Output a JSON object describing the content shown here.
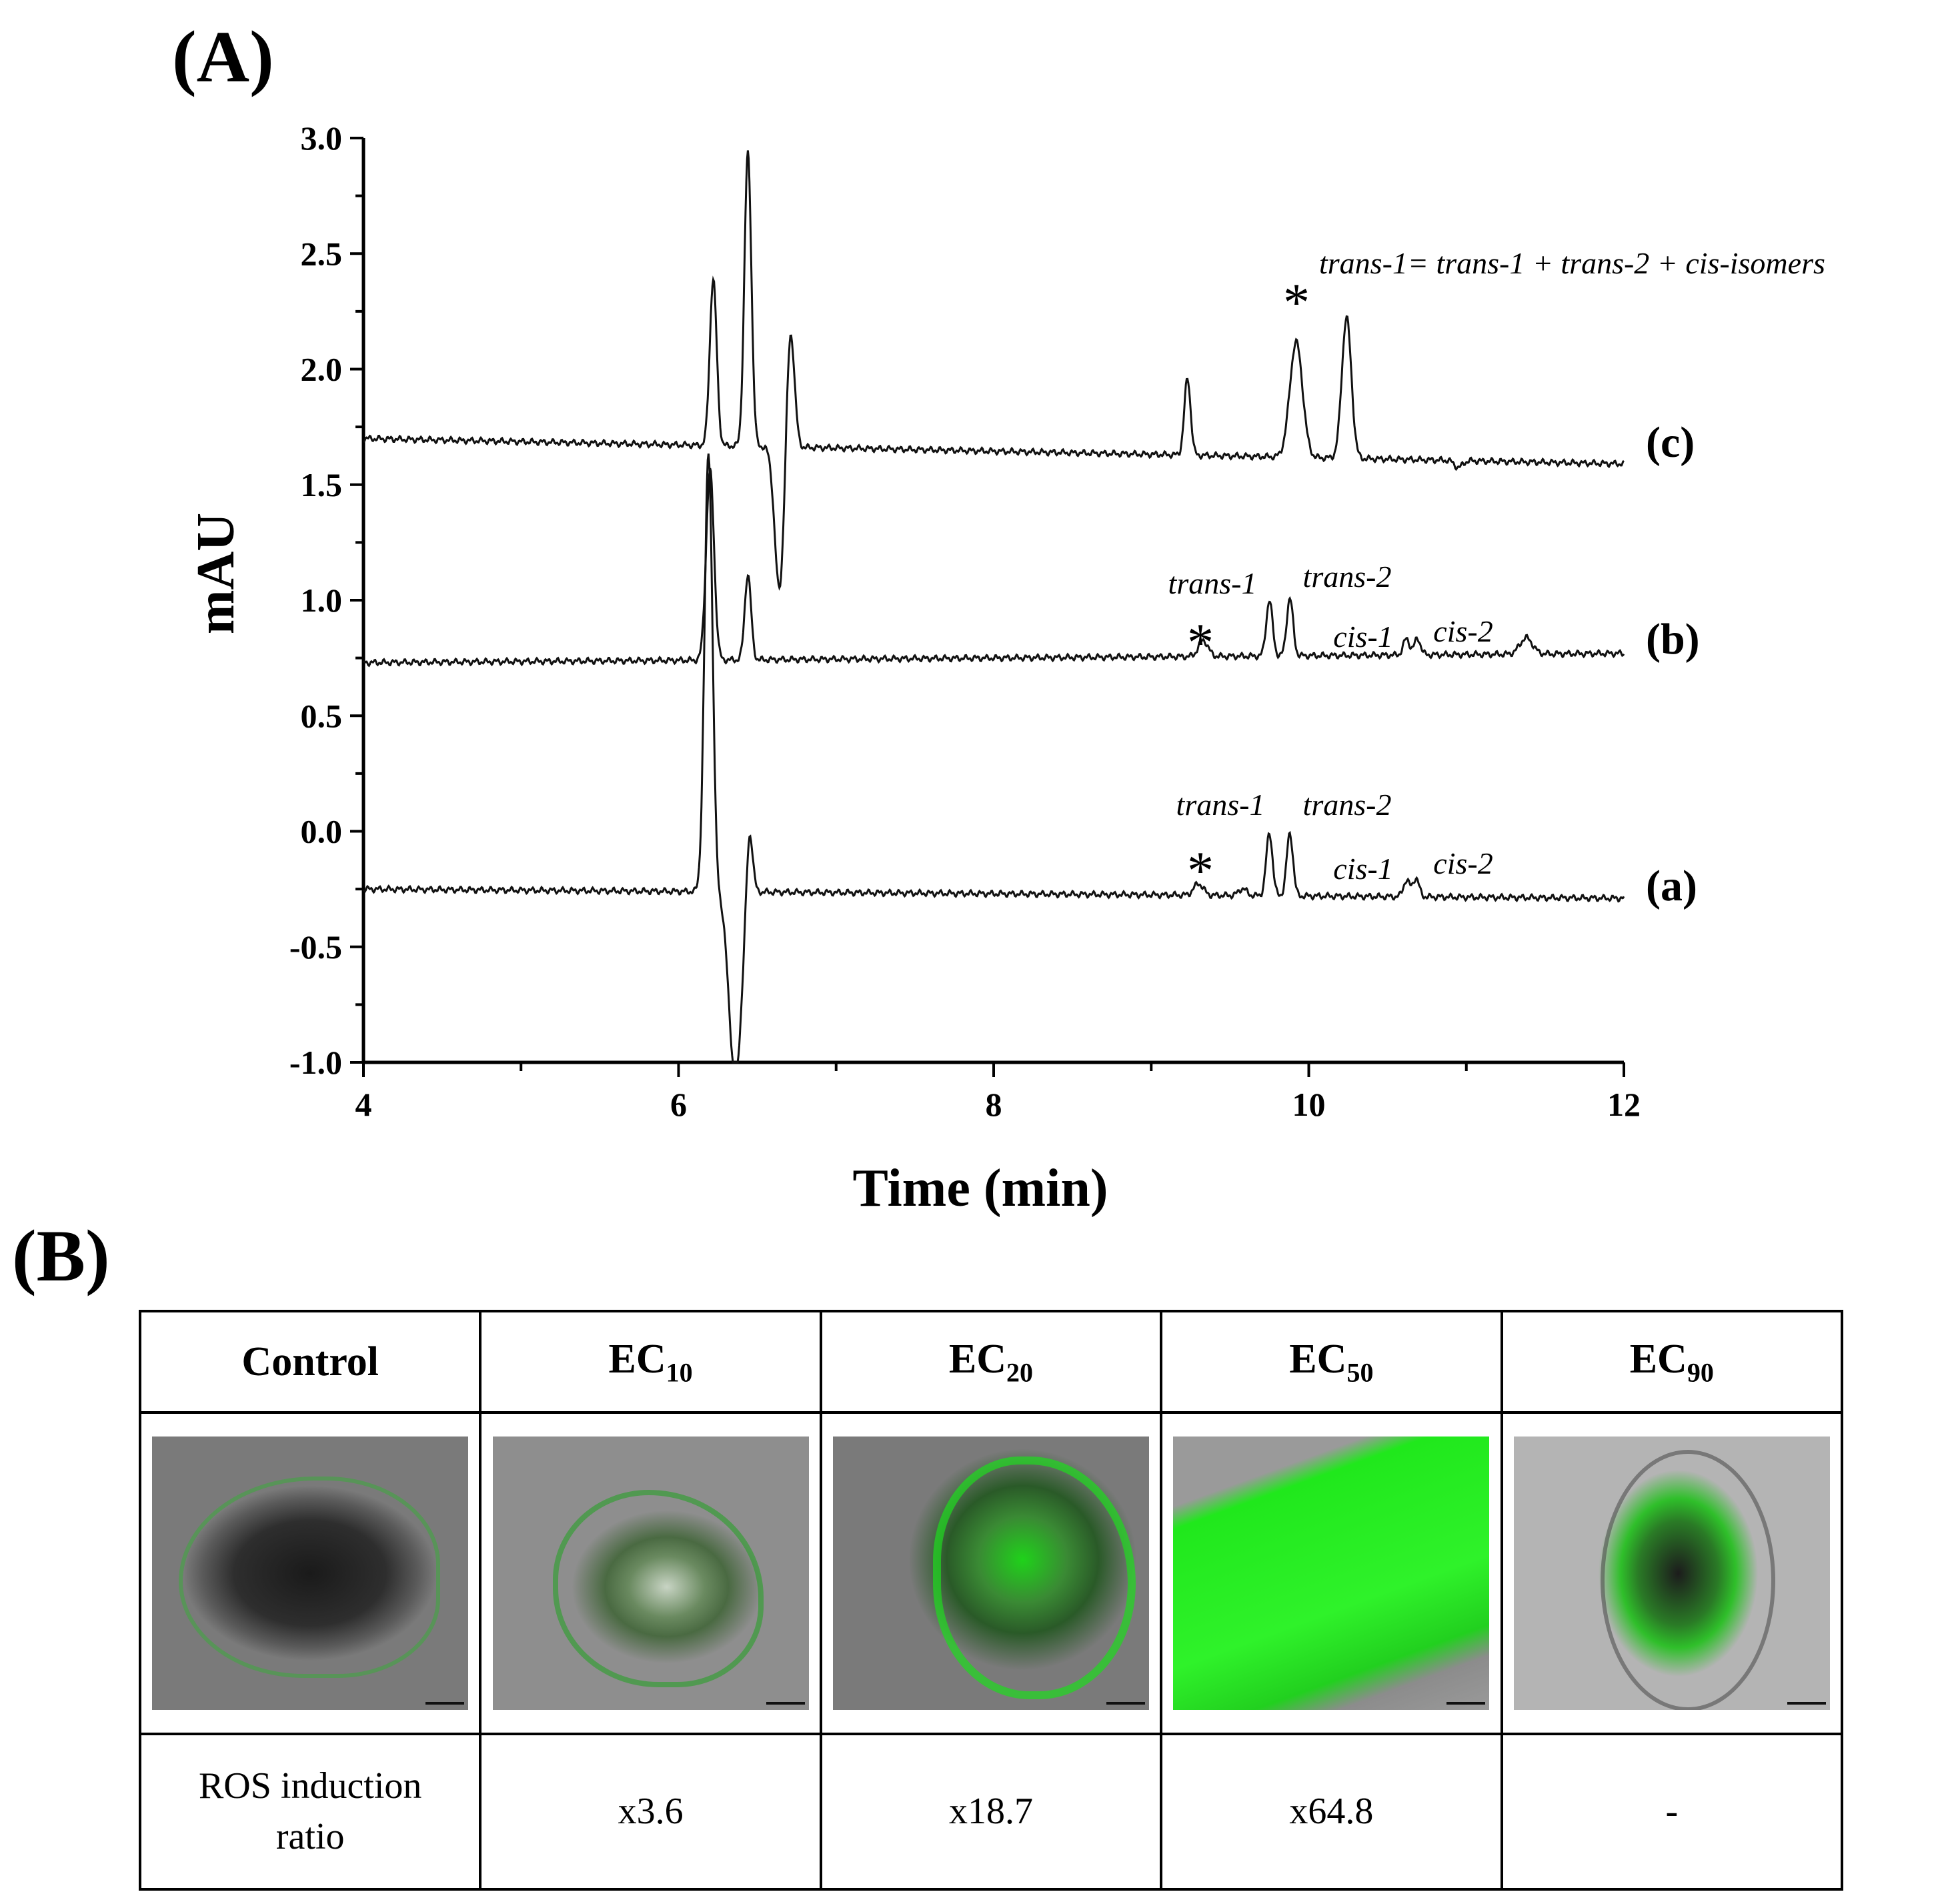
{
  "panel_a_label": "(A)",
  "panel_b_label": "(B)",
  "chart_data": {
    "type": "line",
    "xlabel": "Time (min)",
    "ylabel": "mAU",
    "xlim": [
      4,
      12
    ],
    "ylim": [
      -1.0,
      3.0
    ],
    "x_ticks": [
      "4",
      "6",
      "8",
      "10",
      "12"
    ],
    "y_ticks": [
      "-1.0",
      "-0.5",
      "0.0",
      "0.5",
      "1.0",
      "1.5",
      "2.0",
      "2.5",
      "3.0"
    ],
    "grid": false,
    "series": [
      {
        "name": "(a)",
        "baseline": -0.25,
        "baseline_end": -0.29,
        "peaks": [
          {
            "x": 6.19,
            "y": 1.65,
            "w": 0.025
          },
          {
            "x": 6.36,
            "y": -1.05,
            "w": 0.04
          },
          {
            "x": 6.45,
            "y": 0.05,
            "w": 0.02
          },
          {
            "x": 9.3,
            "y": -0.2,
            "w": 0.03
          },
          {
            "x": 9.58,
            "y": -0.22,
            "w": 0.025
          },
          {
            "x": 9.75,
            "y": 0.02,
            "w": 0.02
          },
          {
            "x": 9.88,
            "y": 0.02,
            "w": 0.02
          },
          {
            "x": 10.62,
            "y": -0.18,
            "w": 0.02
          },
          {
            "x": 10.68,
            "y": -0.17,
            "w": 0.02
          }
        ]
      },
      {
        "name": "(b)",
        "baseline": 0.73,
        "baseline_end": 0.77,
        "peaks": [
          {
            "x": 6.2,
            "y": 1.55,
            "w": 0.025
          },
          {
            "x": 6.44,
            "y": 1.1,
            "w": 0.02
          },
          {
            "x": 9.33,
            "y": 0.8,
            "w": 0.03
          },
          {
            "x": 9.75,
            "y": 0.97,
            "w": 0.02
          },
          {
            "x": 9.88,
            "y": 0.98,
            "w": 0.02
          },
          {
            "x": 10.62,
            "y": 0.8,
            "w": 0.02
          },
          {
            "x": 10.69,
            "y": 0.8,
            "w": 0.02
          },
          {
            "x": 11.38,
            "y": 0.8,
            "w": 0.04
          }
        ]
      },
      {
        "name": "(c)",
        "baseline": 1.7,
        "baseline_end": 1.59,
        "peaks": [
          {
            "x": 6.22,
            "y": 2.42,
            "w": 0.022
          },
          {
            "x": 6.44,
            "y": 2.97,
            "w": 0.022
          },
          {
            "x": 6.64,
            "y": 1.08,
            "w": 0.03
          },
          {
            "x": 6.71,
            "y": 2.22,
            "w": 0.025
          },
          {
            "x": 9.23,
            "y": 2.03,
            "w": 0.02
          },
          {
            "x": 9.92,
            "y": 2.2,
            "w": 0.04
          },
          {
            "x": 10.24,
            "y": 2.31,
            "w": 0.03
          },
          {
            "x": 10.95,
            "y": 1.67,
            "w": 0.025
          }
        ]
      }
    ],
    "trace_labels": [
      "(c)",
      "(b)",
      "(a)"
    ],
    "annotations": {
      "c_equation": "trans-1= trans-1 + trans-2 + cis-isomers",
      "star": "*",
      "trans1": "trans-1",
      "trans2": "trans-2",
      "cis1": "cis-1",
      "cis2": "cis-2"
    }
  },
  "table": {
    "headers": [
      {
        "main": "Control",
        "sub": ""
      },
      {
        "main": "EC",
        "sub": "10"
      },
      {
        "main": "EC",
        "sub": "20"
      },
      {
        "main": "EC",
        "sub": "50"
      },
      {
        "main": "EC",
        "sub": "90"
      }
    ],
    "row_label": "ROS induction ratio",
    "values": [
      "x3.6",
      "x18.7",
      "x64.8",
      "-"
    ]
  },
  "colors": {
    "trace": "#111111",
    "fluorescence": "#22e61e",
    "brightfield": "#8c8c8c"
  }
}
